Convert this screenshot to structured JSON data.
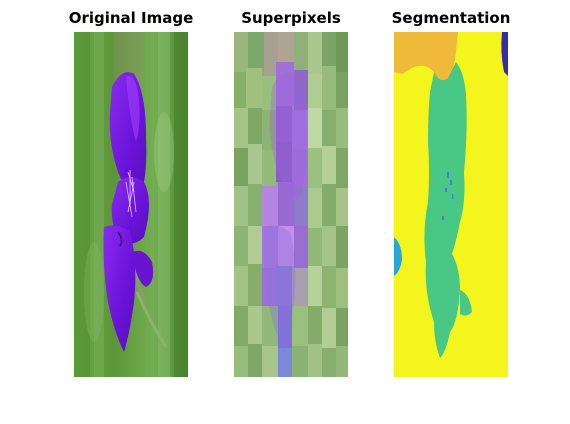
{
  "figure": {
    "panels": [
      {
        "title": "Original Image"
      },
      {
        "title": "Superpixels"
      },
      {
        "title": "Segmentation"
      }
    ]
  },
  "colors": {
    "background": "#ffffff",
    "grass_green": "#5e9a3a",
    "flower_purple": "#7a18e8",
    "superpixel_purple": "#9a6ed0",
    "segment_yellow": "#f5f51e",
    "segment_teal": "#48c884",
    "segment_orange": "#efba3a",
    "segment_indigo": "#3a2ca8",
    "segment_blue": "#28a8d8"
  }
}
